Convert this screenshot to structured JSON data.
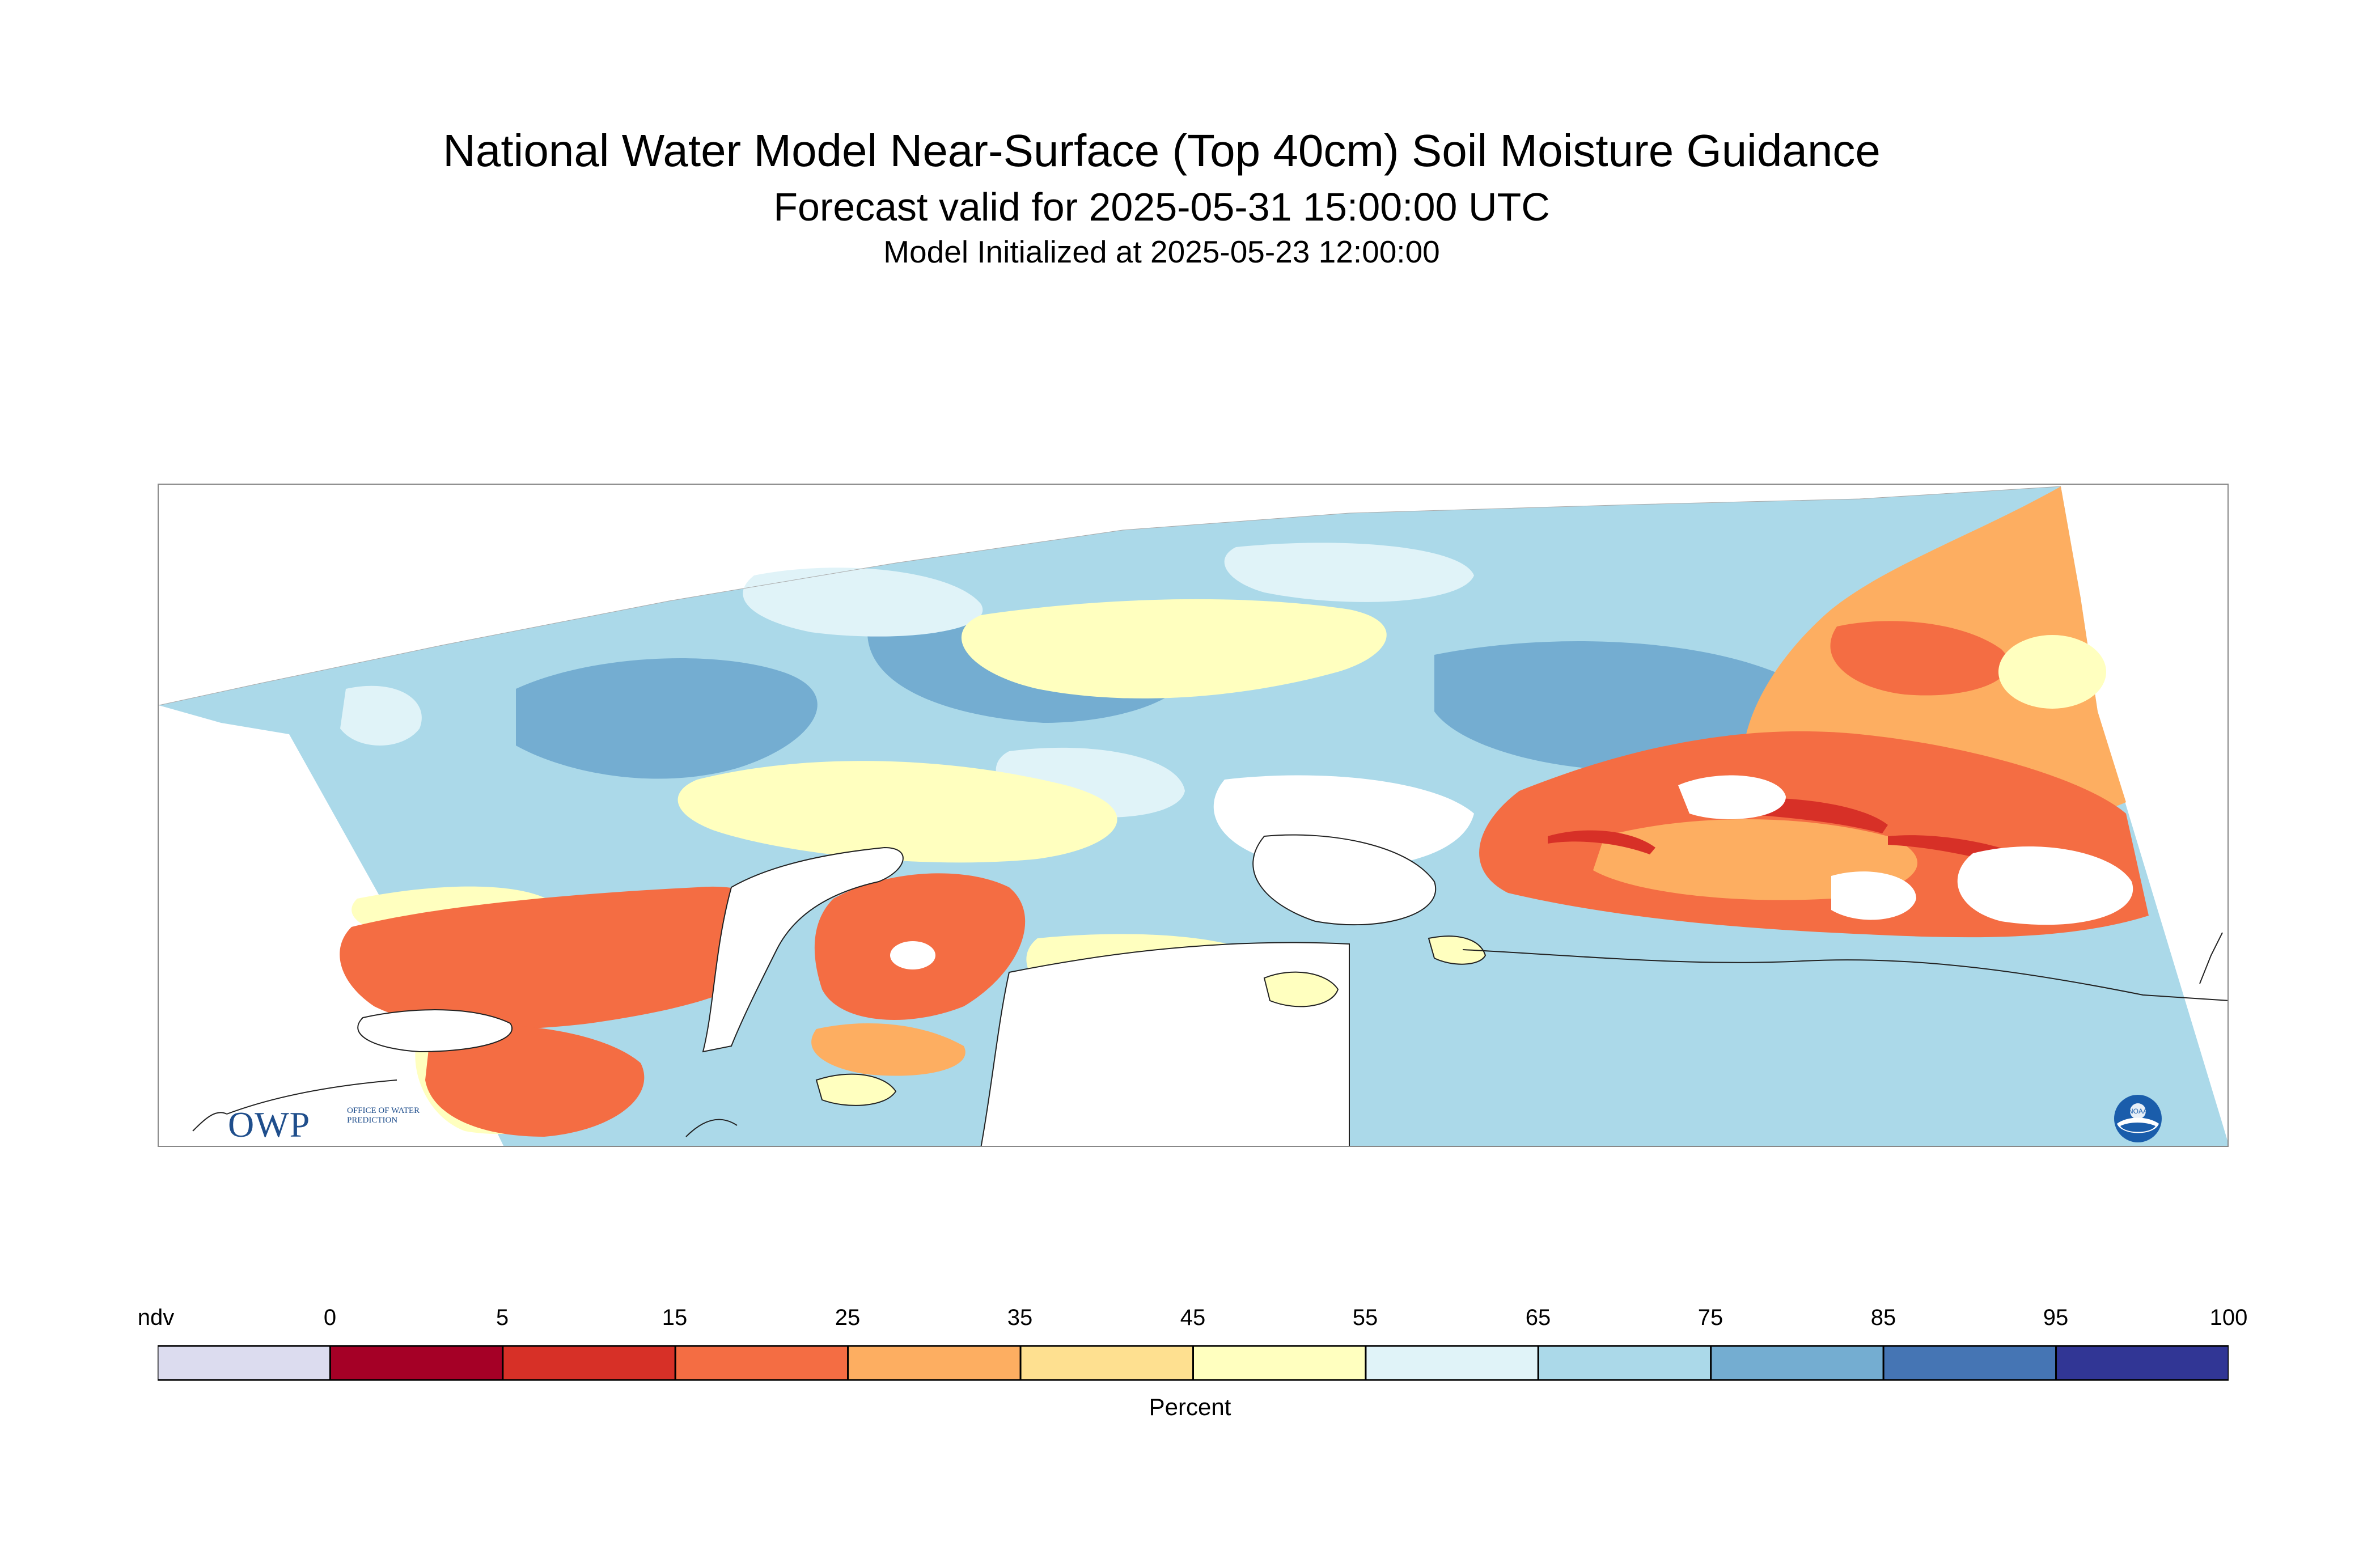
{
  "title": "National Water Model Near-Surface (Top 40cm) Soil Moisture Guidance",
  "subtitle": "Forecast valid for 2025-05-31 15:00:00 UTC",
  "initialized": "Model Initialized at 2025-05-23 12:00:00",
  "logos": {
    "owp_text": "OWP",
    "owp_sub": "OFFICE OF WATER PREDICTION",
    "noaa_text": "NOAA"
  },
  "legend": {
    "units": "Percent",
    "labels": [
      "ndv",
      "0",
      "5",
      "15",
      "25",
      "35",
      "45",
      "55",
      "65",
      "75",
      "85",
      "95",
      "100"
    ],
    "colors": [
      "#dcdcef",
      "#a50026",
      "#d73027",
      "#f46d43",
      "#fdae61",
      "#fee090",
      "#ffffbf",
      "#e0f3f8",
      "#abd9e9",
      "#74add1",
      "#4575b4",
      "#313695"
    ]
  },
  "palette": {
    "drought": "#f46d43",
    "dry": "#fdae61",
    "very_dry": "#d73027",
    "neutral": "#ffffbf",
    "moist": "#abd9e9",
    "wet": "#74add1",
    "very_wet": "#4575b4"
  }
}
